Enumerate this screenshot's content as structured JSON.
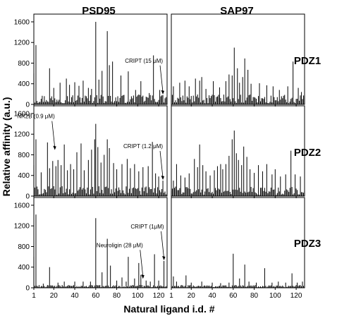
{
  "figure": {
    "col_titles": [
      "PSD95",
      "SAP97"
    ],
    "row_labels": [
      "PDZ1",
      "PDZ2",
      "PDZ3"
    ],
    "y_axis_label": "Relative affinity (a.u.)",
    "x_axis_label": "Natural ligand i.d. #"
  },
  "chart_data": {
    "type": "bar",
    "layout": "3x2 small multiples",
    "columns": [
      "PSD95",
      "SAP97"
    ],
    "rows": [
      "PDZ1",
      "PDZ2",
      "PDZ3"
    ],
    "xlabel": "Natural ligand i.d. #",
    "ylabel": "Relative affinity (a.u.)",
    "xlim": [
      1,
      128
    ],
    "ylim": [
      0,
      1750
    ],
    "x_ticks": [
      "1",
      "20",
      "40",
      "60",
      "80",
      "100",
      "120"
    ],
    "y_ticks": [
      "0",
      "400",
      "800",
      "1200",
      "1600"
    ],
    "grid": false,
    "panels": [
      {
        "protein": "PSD95",
        "domain": "PDZ1",
        "peaks": [
          {
            "x": 1,
            "y": 600
          },
          {
            "x": 3,
            "y": 1150
          },
          {
            "x": 16,
            "y": 700
          },
          {
            "x": 20,
            "y": 320
          },
          {
            "x": 26,
            "y": 420
          },
          {
            "x": 32,
            "y": 500
          },
          {
            "x": 35,
            "y": 380
          },
          {
            "x": 40,
            "y": 430
          },
          {
            "x": 44,
            "y": 360
          },
          {
            "x": 48,
            "y": 460
          },
          {
            "x": 53,
            "y": 320
          },
          {
            "x": 56,
            "y": 300
          },
          {
            "x": 60,
            "y": 1600
          },
          {
            "x": 63,
            "y": 480
          },
          {
            "x": 66,
            "y": 650
          },
          {
            "x": 71,
            "y": 1420
          },
          {
            "x": 73,
            "y": 760
          },
          {
            "x": 76,
            "y": 830
          },
          {
            "x": 84,
            "y": 560
          },
          {
            "x": 91,
            "y": 640
          },
          {
            "x": 98,
            "y": 280
          },
          {
            "x": 103,
            "y": 450
          },
          {
            "x": 111,
            "y": 220
          },
          {
            "x": 115,
            "y": 950
          },
          {
            "x": 121,
            "y": 280
          },
          {
            "x": 124,
            "y": 180
          }
        ],
        "annotations": [
          {
            "text": "CRIPT (15 μM)",
            "x": 124,
            "y": 180
          }
        ]
      },
      {
        "protein": "SAP97",
        "domain": "PDZ1",
        "peaks": [
          {
            "x": 3,
            "y": 350
          },
          {
            "x": 9,
            "y": 420
          },
          {
            "x": 14,
            "y": 460
          },
          {
            "x": 18,
            "y": 350
          },
          {
            "x": 24,
            "y": 500
          },
          {
            "x": 28,
            "y": 460
          },
          {
            "x": 30,
            "y": 530
          },
          {
            "x": 34,
            "y": 300
          },
          {
            "x": 41,
            "y": 450
          },
          {
            "x": 47,
            "y": 330
          },
          {
            "x": 53,
            "y": 450
          },
          {
            "x": 56,
            "y": 580
          },
          {
            "x": 59,
            "y": 560
          },
          {
            "x": 61,
            "y": 1100
          },
          {
            "x": 64,
            "y": 700
          },
          {
            "x": 66,
            "y": 420
          },
          {
            "x": 69,
            "y": 530
          },
          {
            "x": 71,
            "y": 890
          },
          {
            "x": 74,
            "y": 670
          },
          {
            "x": 77,
            "y": 400
          },
          {
            "x": 85,
            "y": 410
          },
          {
            "x": 92,
            "y": 370
          },
          {
            "x": 98,
            "y": 350
          },
          {
            "x": 104,
            "y": 280
          },
          {
            "x": 112,
            "y": 350
          },
          {
            "x": 117,
            "y": 830
          },
          {
            "x": 122,
            "y": 320
          },
          {
            "x": 125,
            "y": 240
          }
        ],
        "annotations": []
      },
      {
        "protein": "PSD95",
        "domain": "PDZ2",
        "peaks": [
          {
            "x": 1,
            "y": 600
          },
          {
            "x": 3,
            "y": 1100
          },
          {
            "x": 8,
            "y": 460
          },
          {
            "x": 14,
            "y": 1040
          },
          {
            "x": 16,
            "y": 540
          },
          {
            "x": 19,
            "y": 680
          },
          {
            "x": 22,
            "y": 580
          },
          {
            "x": 24,
            "y": 700
          },
          {
            "x": 27,
            "y": 600
          },
          {
            "x": 30,
            "y": 1000
          },
          {
            "x": 33,
            "y": 500
          },
          {
            "x": 36,
            "y": 620
          },
          {
            "x": 39,
            "y": 520
          },
          {
            "x": 42,
            "y": 850
          },
          {
            "x": 46,
            "y": 1020
          },
          {
            "x": 49,
            "y": 500
          },
          {
            "x": 53,
            "y": 700
          },
          {
            "x": 56,
            "y": 900
          },
          {
            "x": 59,
            "y": 1100
          },
          {
            "x": 60,
            "y": 1400
          },
          {
            "x": 62,
            "y": 950
          },
          {
            "x": 65,
            "y": 650
          },
          {
            "x": 68,
            "y": 800
          },
          {
            "x": 71,
            "y": 1100
          },
          {
            "x": 73,
            "y": 930
          },
          {
            "x": 77,
            "y": 640
          },
          {
            "x": 80,
            "y": 520
          },
          {
            "x": 85,
            "y": 620
          },
          {
            "x": 90,
            "y": 720
          },
          {
            "x": 93,
            "y": 540
          },
          {
            "x": 97,
            "y": 620
          },
          {
            "x": 101,
            "y": 480
          },
          {
            "x": 105,
            "y": 560
          },
          {
            "x": 110,
            "y": 580
          },
          {
            "x": 114,
            "y": 1050
          },
          {
            "x": 117,
            "y": 440
          },
          {
            "x": 120,
            "y": 380
          },
          {
            "x": 124,
            "y": 300
          }
        ],
        "annotations": [
          {
            "text": "NR2B (0.9 μM)",
            "x": 21,
            "y": 880
          },
          {
            "text": "CRIPT (1.2 μM)",
            "x": 124,
            "y": 300
          }
        ]
      },
      {
        "protein": "SAP97",
        "domain": "PDZ2",
        "peaks": [
          {
            "x": 3,
            "y": 300
          },
          {
            "x": 6,
            "y": 620
          },
          {
            "x": 10,
            "y": 400
          },
          {
            "x": 14,
            "y": 360
          },
          {
            "x": 18,
            "y": 440
          },
          {
            "x": 23,
            "y": 720
          },
          {
            "x": 26,
            "y": 560
          },
          {
            "x": 28,
            "y": 1000
          },
          {
            "x": 31,
            "y": 600
          },
          {
            "x": 34,
            "y": 480
          },
          {
            "x": 38,
            "y": 400
          },
          {
            "x": 42,
            "y": 500
          },
          {
            "x": 45,
            "y": 580
          },
          {
            "x": 48,
            "y": 620
          },
          {
            "x": 50,
            "y": 520
          },
          {
            "x": 53,
            "y": 620
          },
          {
            "x": 56,
            "y": 780
          },
          {
            "x": 59,
            "y": 1100
          },
          {
            "x": 61,
            "y": 1270
          },
          {
            "x": 63,
            "y": 830
          },
          {
            "x": 65,
            "y": 700
          },
          {
            "x": 68,
            "y": 600
          },
          {
            "x": 70,
            "y": 960
          },
          {
            "x": 73,
            "y": 760
          },
          {
            "x": 76,
            "y": 520
          },
          {
            "x": 80,
            "y": 450
          },
          {
            "x": 84,
            "y": 600
          },
          {
            "x": 88,
            "y": 480
          },
          {
            "x": 92,
            "y": 620
          },
          {
            "x": 97,
            "y": 420
          },
          {
            "x": 100,
            "y": 520
          },
          {
            "x": 105,
            "y": 380
          },
          {
            "x": 110,
            "y": 420
          },
          {
            "x": 115,
            "y": 880
          },
          {
            "x": 119,
            "y": 420
          },
          {
            "x": 124,
            "y": 380
          }
        ],
        "annotations": []
      },
      {
        "protein": "PSD95",
        "domain": "PDZ3",
        "peaks": [
          {
            "x": 1,
            "y": 600
          },
          {
            "x": 3,
            "y": 1420
          },
          {
            "x": 10,
            "y": 80
          },
          {
            "x": 16,
            "y": 400
          },
          {
            "x": 24,
            "y": 100
          },
          {
            "x": 30,
            "y": 120
          },
          {
            "x": 40,
            "y": 120
          },
          {
            "x": 48,
            "y": 120
          },
          {
            "x": 55,
            "y": 120
          },
          {
            "x": 60,
            "y": 1350
          },
          {
            "x": 66,
            "y": 300
          },
          {
            "x": 71,
            "y": 950
          },
          {
            "x": 74,
            "y": 430
          },
          {
            "x": 80,
            "y": 140
          },
          {
            "x": 85,
            "y": 200
          },
          {
            "x": 89,
            "y": 120
          },
          {
            "x": 91,
            "y": 600
          },
          {
            "x": 97,
            "y": 180
          },
          {
            "x": 101,
            "y": 480
          },
          {
            "x": 103,
            "y": 250
          },
          {
            "x": 108,
            "y": 140
          },
          {
            "x": 112,
            "y": 120
          },
          {
            "x": 116,
            "y": 650
          },
          {
            "x": 120,
            "y": 140
          },
          {
            "x": 125,
            "y": 520
          }
        ],
        "annotations": [
          {
            "text": "Neuroligin (28 μM)",
            "x": 105,
            "y": 160
          },
          {
            "text": "CRIPT (1μM)",
            "x": 125,
            "y": 520
          }
        ]
      },
      {
        "protein": "SAP97",
        "domain": "PDZ3",
        "peaks": [
          {
            "x": 3,
            "y": 220
          },
          {
            "x": 6,
            "y": 120
          },
          {
            "x": 15,
            "y": 240
          },
          {
            "x": 20,
            "y": 100
          },
          {
            "x": 30,
            "y": 120
          },
          {
            "x": 40,
            "y": 100
          },
          {
            "x": 48,
            "y": 90
          },
          {
            "x": 56,
            "y": 100
          },
          {
            "x": 60,
            "y": 660
          },
          {
            "x": 66,
            "y": 180
          },
          {
            "x": 71,
            "y": 450
          },
          {
            "x": 75,
            "y": 120
          },
          {
            "x": 82,
            "y": 100
          },
          {
            "x": 90,
            "y": 380
          },
          {
            "x": 97,
            "y": 100
          },
          {
            "x": 103,
            "y": 120
          },
          {
            "x": 110,
            "y": 100
          },
          {
            "x": 116,
            "y": 280
          },
          {
            "x": 121,
            "y": 100
          },
          {
            "x": 126,
            "y": 120
          }
        ],
        "annotations": []
      }
    ]
  }
}
